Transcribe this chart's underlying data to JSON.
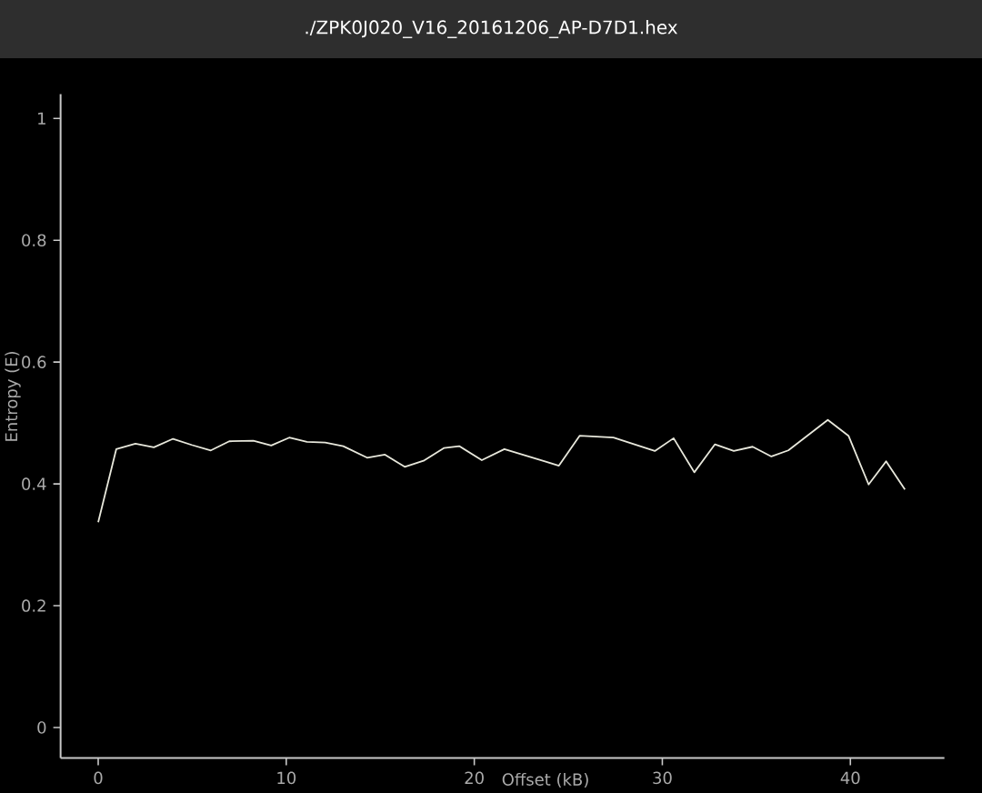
{
  "chart_data": {
    "type": "line",
    "title": "./ZPK0J020_V16_20161206_AP-D7D1.hex",
    "xlabel": "Offset (kB)",
    "ylabel": "Entropy (E)",
    "x": [
      0,
      0.96,
      1.98,
      2.96,
      3.98,
      4.97,
      5.99,
      6.97,
      8.25,
      9.2,
      10.16,
      11.1,
      12.07,
      13.03,
      14.3,
      15.25,
      16.3,
      17.3,
      18.4,
      19.2,
      20.4,
      21.6,
      24.5,
      25.6,
      27.4,
      29.6,
      30.6,
      31.7,
      32.8,
      33.8,
      34.8,
      35.8,
      36.7,
      38.8,
      39.9,
      40.97,
      41.9,
      42.9
    ],
    "values": [
      0.337,
      0.457,
      0.466,
      0.46,
      0.474,
      0.464,
      0.455,
      0.47,
      0.471,
      0.463,
      0.476,
      0.469,
      0.468,
      0.462,
      0.443,
      0.448,
      0.428,
      0.438,
      0.459,
      0.462,
      0.439,
      0.457,
      0.43,
      0.479,
      0.476,
      0.454,
      0.475,
      0.419,
      0.465,
      0.454,
      0.461,
      0.445,
      0.455,
      0.505,
      0.479,
      0.399,
      0.437,
      0.391
    ],
    "color": "#e8e8dc",
    "xlim": [
      -2,
      45
    ],
    "ylim": [
      -0.05,
      1.04
    ],
    "xticks": [
      0,
      10,
      20,
      30,
      40
    ],
    "yticks": [
      0,
      0.2,
      0.4,
      0.6,
      0.8,
      1
    ],
    "grid": false,
    "marker": "none",
    "line_style": "solid"
  }
}
